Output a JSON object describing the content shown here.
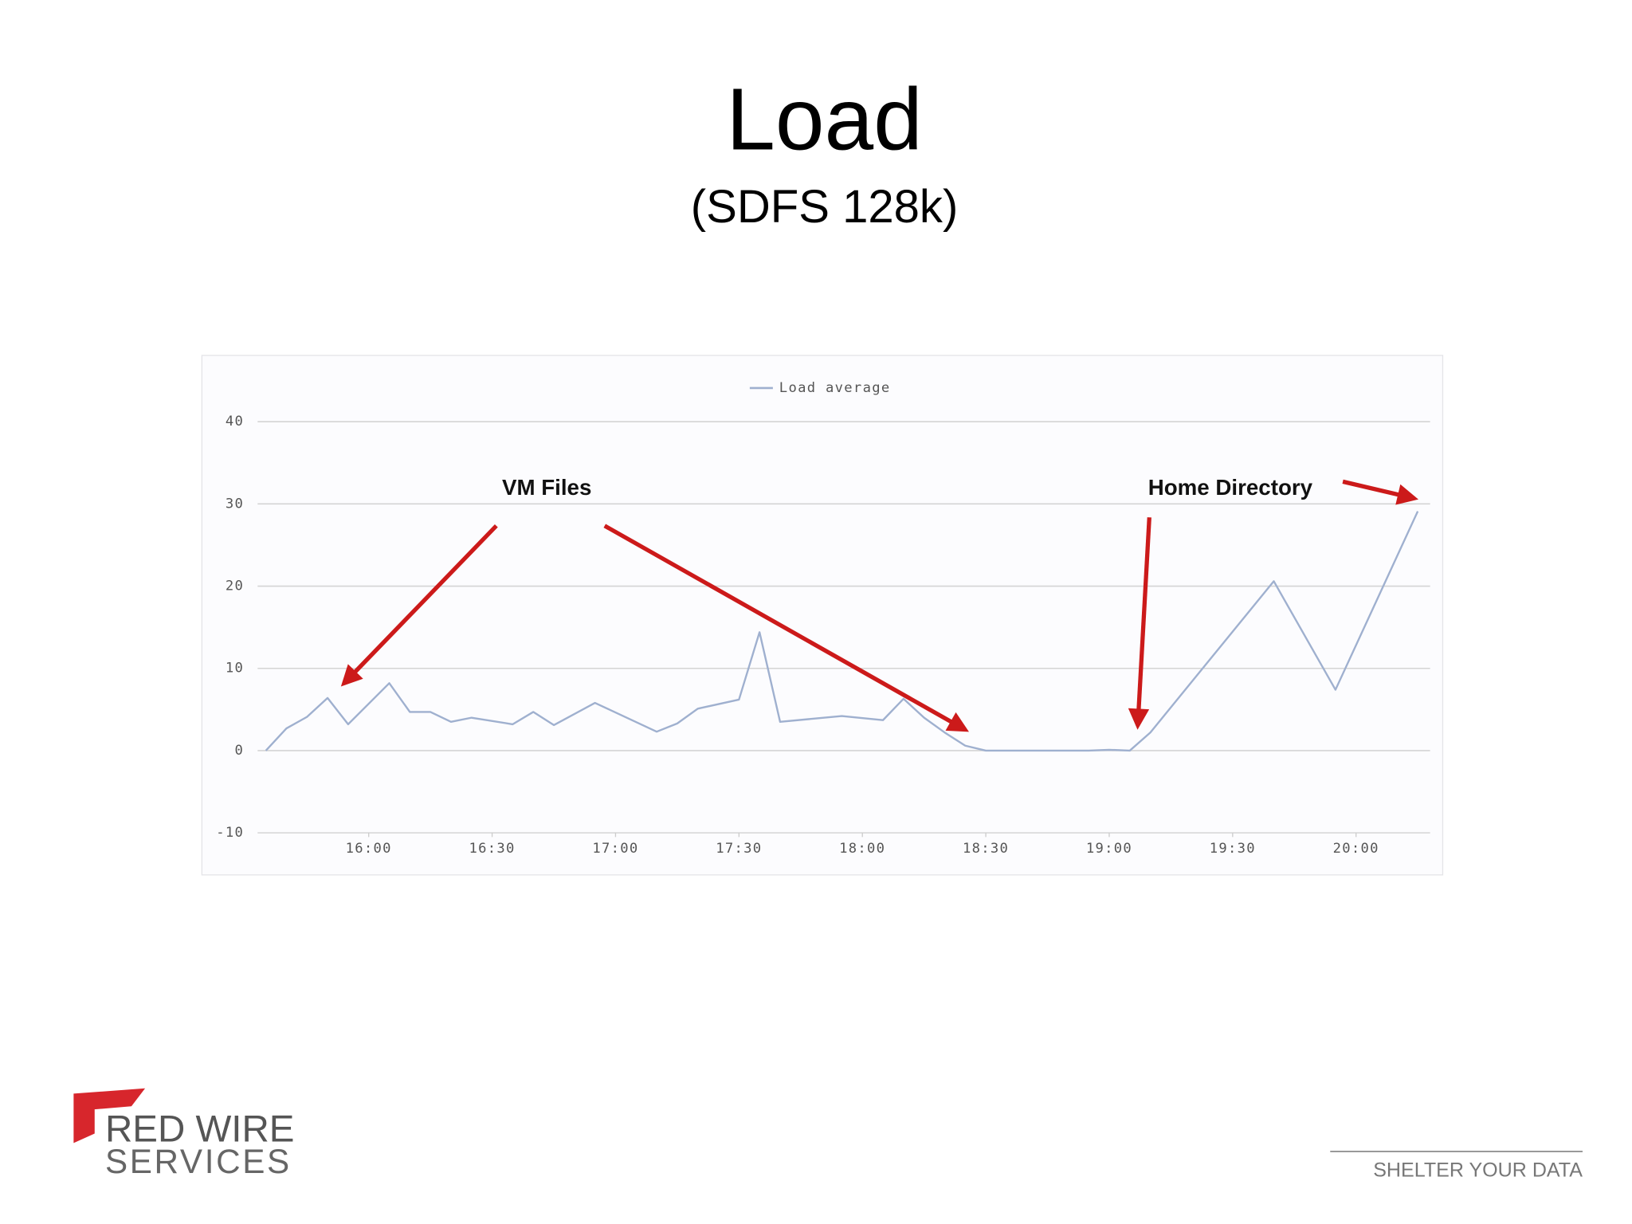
{
  "title": "Load",
  "subtitle": "(SDFS 128k)",
  "chart_data": {
    "type": "line",
    "x": [
      935,
      940,
      945,
      950,
      955,
      965,
      970,
      975,
      980,
      985,
      995,
      1000,
      1005,
      1015,
      1030,
      1035,
      1040,
      1050,
      1055,
      1060,
      1075,
      1085,
      1090,
      1095,
      1100,
      1105,
      1110,
      1135,
      1140,
      1145,
      1150,
      1180,
      1195,
      1215
    ],
    "series": [
      {
        "name": "Load average",
        "color": "#9fb0cf",
        "values": [
          0,
          2.7,
          4.1,
          6.4,
          3.2,
          8.2,
          4.7,
          4.7,
          3.5,
          4.0,
          3.2,
          4.7,
          3.1,
          5.8,
          2.3,
          3.3,
          5.1,
          6.2,
          14.4,
          3.5,
          4.2,
          3.7,
          6.3,
          4.0,
          2.2,
          0.6,
          0,
          0,
          0.1,
          0,
          2.2,
          20.6,
          7.4,
          29.1
        ]
      }
    ],
    "xlim": [
      933,
      1218
    ],
    "xticks": [
      {
        "value": 960,
        "label": "16:00"
      },
      {
        "value": 990,
        "label": "16:30"
      },
      {
        "value": 1020,
        "label": "17:00"
      },
      {
        "value": 1050,
        "label": "17:30"
      },
      {
        "value": 1080,
        "label": "18:00"
      },
      {
        "value": 1110,
        "label": "18:30"
      },
      {
        "value": 1140,
        "label": "19:00"
      },
      {
        "value": 1170,
        "label": "19:30"
      },
      {
        "value": 1200,
        "label": "20:00"
      }
    ],
    "ylim": [
      -10,
      40
    ],
    "yticks": [
      -10,
      0,
      10,
      20,
      30,
      40
    ],
    "grid": true,
    "legend": "top",
    "annotations": [
      "VM Files",
      "Home Directory"
    ]
  },
  "footer": {
    "logo_line1": "RED WIRE",
    "logo_line2": "SERVICES",
    "tagline": "SHELTER YOUR DATA"
  }
}
